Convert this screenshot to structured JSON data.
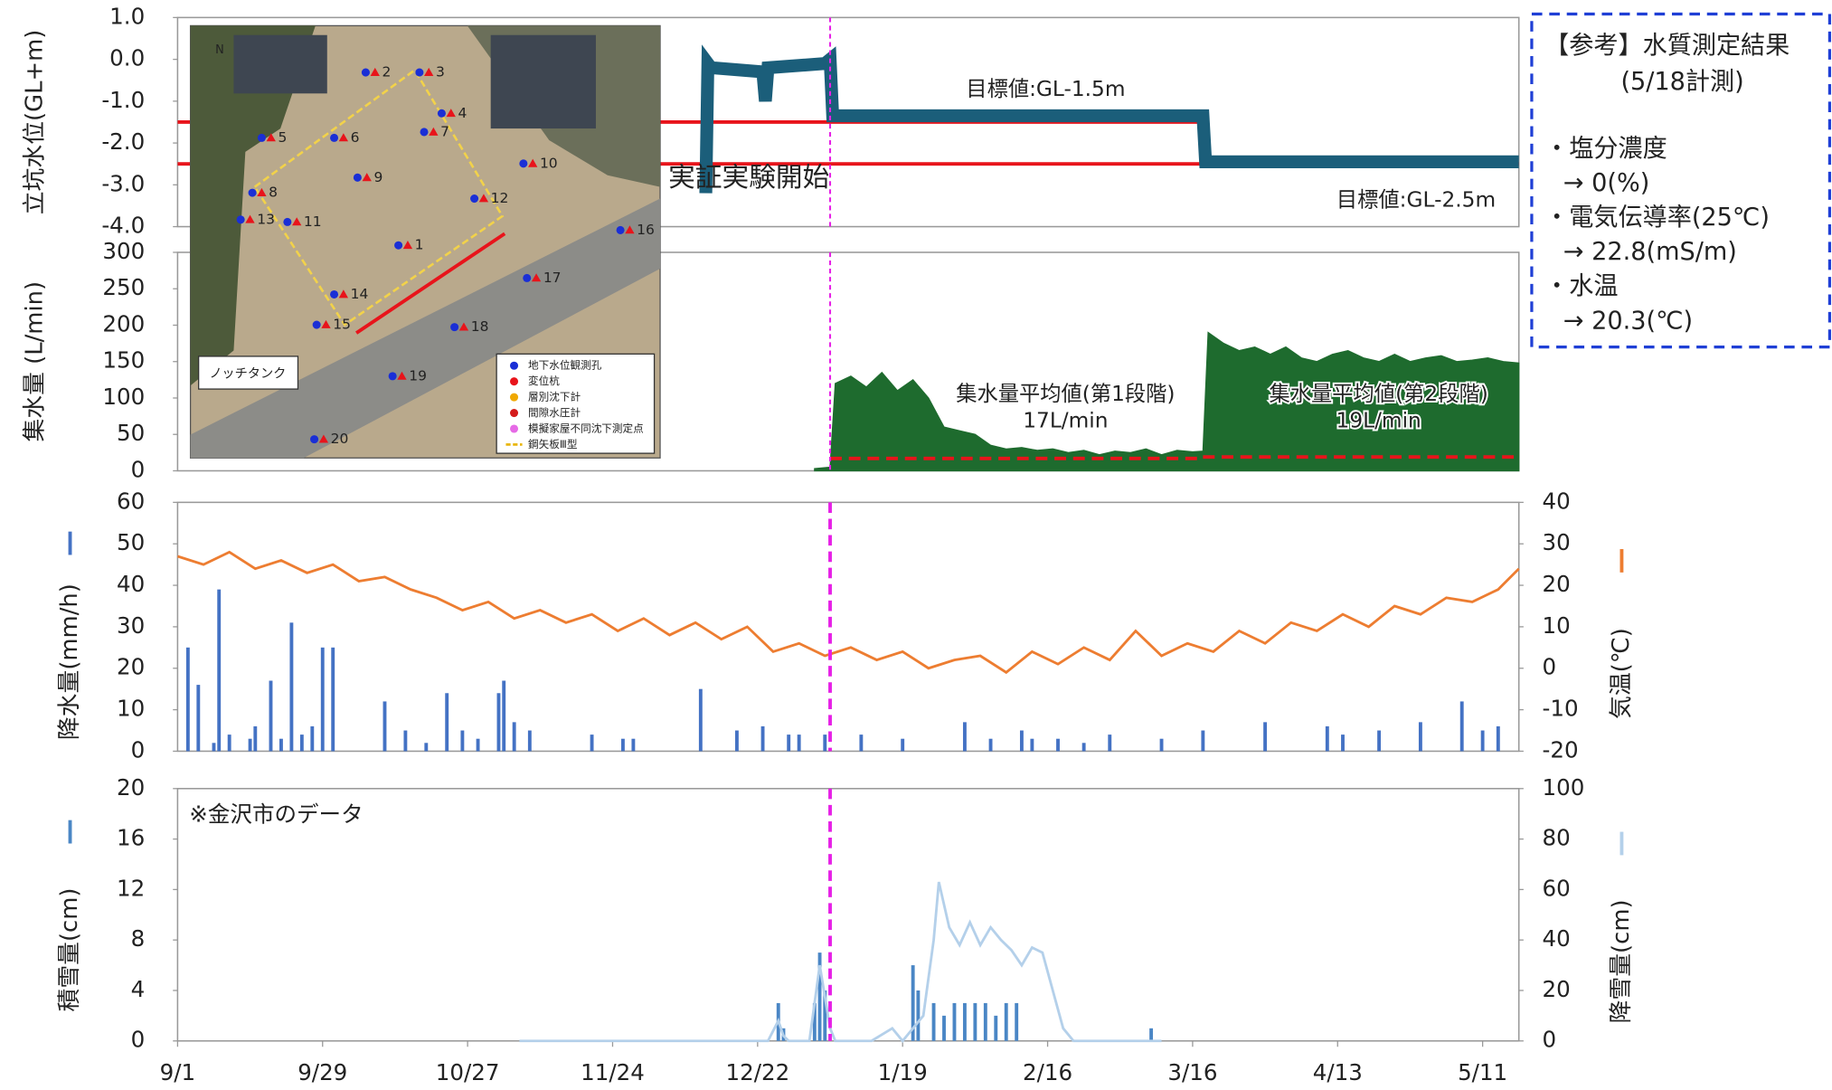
{
  "chart_data": [
    {
      "type": "combo",
      "ylabel": "立坑水位(GL+m)",
      "xlim": [
        0,
        259
      ],
      "ylim": [
        -4,
        1
      ],
      "yticks": [
        {
          "value": 1,
          "label": "1.0"
        },
        {
          "value": 0,
          "label": "0.0"
        },
        {
          "value": -1,
          "label": "-1.0"
        },
        {
          "value": -2,
          "label": "-2.0"
        },
        {
          "value": -3,
          "label": "-3.0"
        },
        {
          "value": -4,
          "label": "-4.0"
        }
      ],
      "vline": 126,
      "hlines": [
        {
          "value": -1.5,
          "from": 0,
          "to": 198,
          "color": "#e8141b"
        },
        {
          "value": -2.5,
          "from": 0,
          "to": 259,
          "color": "#e8141b"
        }
      ],
      "series": [
        {
          "type": "line",
          "color": "#1b5e7a",
          "x": [
            102,
            102.4,
            103,
            113,
            113.5,
            114,
            125,
            126,
            126.5,
            198,
            198.5,
            259
          ],
          "values": [
            -3.2,
            -0.1,
            -0.2,
            -0.3,
            -1.0,
            -0.2,
            -0.1,
            0,
            -1.35,
            -1.35,
            -2.45,
            -2.45
          ]
        }
      ],
      "annotations": [
        {
          "text": "目標値:GL-1.5m",
          "color": "#e8141b"
        },
        {
          "text": "実証実験開始",
          "color": "#e620e6"
        },
        {
          "text": "目標値:GL-2.5m",
          "color": "#e8141b"
        }
      ]
    },
    {
      "type": "combo",
      "ylabel": "集水量 (L/min)",
      "xlim": [
        0,
        259
      ],
      "ylim": [
        0,
        300
      ],
      "yticks": [
        0,
        50,
        100,
        150,
        200,
        250,
        300
      ],
      "vline": 126,
      "series": [
        {
          "type": "area",
          "color": "#1e6b2e",
          "x": [
            123,
            126,
            127,
            130,
            133,
            136,
            139,
            142,
            145,
            148,
            151,
            154,
            157,
            160,
            163,
            166,
            169,
            172,
            175,
            178,
            181,
            184,
            187,
            190,
            193,
            196,
            198,
            199,
            202,
            205,
            208,
            211,
            214,
            217,
            220,
            223,
            226,
            229,
            232,
            235,
            238,
            241,
            244,
            247,
            250,
            253,
            256,
            259
          ],
          "values": [
            3,
            5,
            120,
            130,
            115,
            135,
            110,
            125,
            100,
            60,
            55,
            50,
            35,
            30,
            32,
            28,
            30,
            25,
            28,
            22,
            27,
            25,
            30,
            22,
            28,
            26,
            27,
            190,
            175,
            165,
            170,
            160,
            170,
            155,
            150,
            160,
            165,
            155,
            150,
            160,
            150,
            155,
            158,
            150,
            152,
            155,
            150,
            148
          ]
        },
        {
          "type": "line",
          "dash": true,
          "color": "#e8141b",
          "x": [
            126,
            198
          ],
          "values": [
            17,
            17
          ]
        },
        {
          "type": "line",
          "dash": true,
          "color": "#e8141b",
          "x": [
            198,
            259
          ],
          "values": [
            19,
            19
          ]
        }
      ],
      "annotations": [
        {
          "text": "集水量平均値(第1段階)",
          "color": "#b8312f"
        },
        {
          "text": "17L/min",
          "color": "#b8312f"
        },
        {
          "text": "集水量平均値(第2段階)",
          "color": "#b8312f"
        },
        {
          "text": "19L/min",
          "color": "#b8312f"
        }
      ]
    },
    {
      "type": "combo",
      "ylabel": "降水量(mm/h)",
      "y2label": "気温(℃)",
      "xlim": [
        0,
        259
      ],
      "ylim": [
        0,
        60
      ],
      "yticks": [
        0,
        10,
        20,
        30,
        40,
        50,
        60
      ],
      "y2lim": [
        -20,
        40
      ],
      "y2ticks": [
        -20,
        -10,
        0,
        10,
        20,
        30,
        40
      ],
      "vline": 126,
      "series": [
        {
          "type": "bar",
          "color": "#4472c4",
          "x": [
            2,
            4,
            7,
            8,
            10,
            14,
            15,
            18,
            20,
            22,
            24,
            26,
            28,
            30,
            40,
            44,
            48,
            52,
            55,
            58,
            62,
            63,
            65,
            68,
            80,
            86,
            88,
            101,
            108,
            113,
            118,
            120,
            125,
            132,
            140,
            152,
            157,
            163,
            165,
            170,
            175,
            180,
            190,
            198,
            210,
            222,
            225,
            232,
            240,
            248,
            252,
            255
          ],
          "values": [
            25,
            16,
            2,
            39,
            4,
            3,
            6,
            17,
            3,
            31,
            4,
            6,
            25,
            25,
            12,
            5,
            2,
            14,
            5,
            3,
            14,
            17,
            7,
            5,
            4,
            3,
            3,
            15,
            5,
            6,
            4,
            4,
            4,
            4,
            3,
            7,
            3,
            5,
            3,
            3,
            2,
            4,
            3,
            5,
            7,
            6,
            4,
            5,
            7,
            12,
            5,
            6
          ]
        },
        {
          "type": "line",
          "axis": "y2",
          "color": "#ed7d31",
          "x": [
            0,
            5,
            10,
            15,
            20,
            25,
            30,
            35,
            40,
            45,
            50,
            55,
            60,
            65,
            70,
            75,
            80,
            85,
            90,
            95,
            100,
            105,
            110,
            115,
            120,
            125,
            130,
            135,
            140,
            145,
            150,
            155,
            160,
            165,
            170,
            175,
            180,
            185,
            190,
            195,
            200,
            205,
            210,
            215,
            220,
            225,
            230,
            235,
            240,
            245,
            250,
            255,
            259
          ],
          "values": [
            27,
            25,
            28,
            24,
            26,
            23,
            25,
            21,
            22,
            19,
            17,
            14,
            16,
            12,
            14,
            11,
            13,
            9,
            12,
            8,
            11,
            7,
            10,
            4,
            6,
            3,
            5,
            2,
            4,
            0,
            2,
            3,
            -1,
            4,
            1,
            5,
            2,
            9,
            3,
            6,
            4,
            9,
            6,
            11,
            9,
            13,
            10,
            15,
            13,
            17,
            16,
            19,
            24
          ]
        }
      ]
    },
    {
      "type": "combo",
      "ylabel": "積雪量(cm)",
      "y2label": "降雪量(cm)",
      "xlim": [
        0,
        259
      ],
      "ylim": [
        0,
        20
      ],
      "yticks": [
        0,
        4,
        8,
        12,
        16,
        20
      ],
      "y2lim": [
        0,
        100
      ],
      "y2ticks": [
        0,
        20,
        40,
        60,
        80,
        100
      ],
      "vline": 126,
      "xticks": [
        {
          "value": 0,
          "label": "9/1"
        },
        {
          "value": 28,
          "label": "9/29"
        },
        {
          "value": 56,
          "label": "10/27"
        },
        {
          "value": 84,
          "label": "11/24"
        },
        {
          "value": 112,
          "label": "12/22"
        },
        {
          "value": 140,
          "label": "1/19"
        },
        {
          "value": 168,
          "label": "2/16"
        },
        {
          "value": 196,
          "label": "3/16"
        },
        {
          "value": 224,
          "label": "4/13"
        },
        {
          "value": 252,
          "label": "5/11"
        }
      ],
      "series": [
        {
          "type": "bar",
          "color": "#4a86c5",
          "x": [
            116,
            117,
            123,
            124,
            125,
            142,
            143,
            146,
            148,
            150,
            152,
            154,
            156,
            158,
            160,
            162,
            188
          ],
          "values": [
            3,
            1,
            3,
            7,
            4,
            6,
            4,
            3,
            2,
            3,
            3,
            3,
            3,
            2,
            3,
            3,
            1
          ]
        },
        {
          "type": "line",
          "axis": "y2",
          "color": "#b4d0ea",
          "x": [
            66,
            114,
            116,
            117,
            118,
            122,
            124,
            126,
            127,
            134,
            138,
            140,
            144,
            146,
            147,
            149,
            151,
            153,
            155,
            157,
            159,
            161,
            163,
            165,
            167,
            169,
            171,
            173,
            190
          ],
          "values": [
            0,
            0,
            8,
            2,
            0,
            0,
            30,
            5,
            0,
            0,
            5,
            0,
            10,
            40,
            63,
            45,
            38,
            47,
            38,
            45,
            40,
            36,
            30,
            37,
            35,
            20,
            5,
            0,
            0
          ]
        }
      ],
      "annotations": [
        {
          "text": "※金沢市のデータ",
          "color": "#222"
        }
      ]
    }
  ],
  "reference": {
    "title": "【参考】水質測定結果",
    "date": "(5/18計測)",
    "lines": [
      "・塩分濃度",
      "→ 0(%)",
      "・電気伝導率(25℃)",
      "→ 22.8(mS/m)",
      "・水温",
      "→  20.3(℃)"
    ]
  },
  "map": {
    "north": "N",
    "tank": "ノッチタンク",
    "points": [
      "1",
      "2",
      "3",
      "4",
      "5",
      "6",
      "7",
      "8",
      "9",
      "10",
      "11",
      "12",
      "13",
      "14",
      "15",
      "16",
      "17",
      "18",
      "19",
      "20"
    ],
    "legend": [
      "地下水位観測孔",
      "変位杭",
      "層別沈下計",
      "間隙水圧計",
      "模擬家屋不同沈下測定点",
      "鋼矢板Ⅲ型"
    ]
  }
}
